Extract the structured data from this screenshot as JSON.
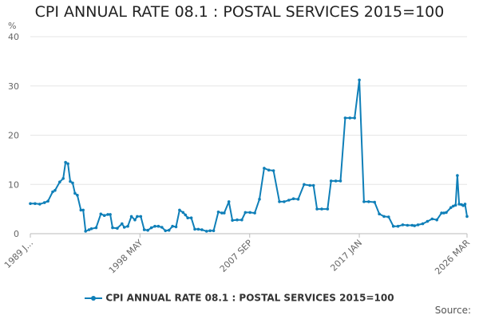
{
  "chart_data": {
    "type": "line",
    "title": "CPI ANNUAL RATE 08.1 : POSTAL SERVICES 2015=100",
    "ylabel": "%",
    "xlabel": "",
    "ylim": [
      0,
      40
    ],
    "yticks": [
      0,
      10,
      20,
      30,
      40
    ],
    "xlim": [
      1989.0,
      2026.17
    ],
    "xticks": [
      {
        "x": 1989.0,
        "label": "1989 J..."
      },
      {
        "x": 1998.33,
        "label": "1998 MAY"
      },
      {
        "x": 2007.67,
        "label": "2007 SEP"
      },
      {
        "x": 2017.0,
        "label": "2017 JAN"
      },
      {
        "x": 2026.17,
        "label": "2026 MAR"
      }
    ],
    "series": [
      {
        "name": "CPI ANNUAL RATE 08.1 : POSTAL SERVICES 2015=100",
        "color": "#0f7fb8",
        "x": [
          1989.0,
          1989.4,
          1989.8,
          1990.2,
          1990.5,
          1990.9,
          1991.1,
          1991.5,
          1991.8,
          1992.0,
          1992.2,
          1992.4,
          1992.6,
          1992.8,
          1993.0,
          1993.3,
          1993.5,
          1993.7,
          1994.0,
          1994.2,
          1994.6,
          1995.0,
          1995.3,
          1995.6,
          1995.8,
          1996.0,
          1996.4,
          1996.8,
          1997.0,
          1997.3,
          1997.6,
          1997.9,
          1998.1,
          1998.4,
          1998.7,
          1999.0,
          1999.3,
          1999.6,
          1999.9,
          2000.2,
          2000.5,
          2000.8,
          2001.1,
          2001.4,
          2001.7,
          2002.0,
          2002.2,
          2002.4,
          2002.7,
          2003.0,
          2003.3,
          2003.6,
          2004.0,
          2004.3,
          2004.6,
          2005.0,
          2005.3,
          2005.5,
          2005.9,
          2006.2,
          2006.6,
          2007.0,
          2007.3,
          2007.7,
          2008.1,
          2008.5,
          2008.9,
          2009.3,
          2009.7,
          2010.2,
          2010.6,
          2011.0,
          2011.4,
          2011.8,
          2012.3,
          2012.8,
          2013.1,
          2013.4,
          2013.8,
          2014.3,
          2014.6,
          2015.0,
          2015.4,
          2015.8,
          2016.2,
          2016.6,
          2017.0,
          2017.4,
          2017.8,
          2018.3,
          2018.7,
          2019.1,
          2019.5,
          2019.9,
          2020.3,
          2020.7,
          2021.1,
          2021.5,
          2021.7,
          2022.0,
          2022.4,
          2022.8,
          2023.2,
          2023.6,
          2024.0,
          2024.2,
          2024.4,
          2024.8,
          2025.0,
          2025.2,
          2025.35,
          2025.5,
          2025.7,
          2025.85,
          2026.0,
          2026.17
        ],
        "values": [
          6.1,
          6.1,
          6.0,
          6.3,
          6.6,
          8.5,
          8.8,
          10.5,
          11.2,
          14.5,
          14.2,
          10.6,
          10.3,
          8.2,
          7.8,
          4.8,
          4.8,
          0.5,
          0.8,
          1.0,
          1.2,
          4.0,
          3.7,
          3.9,
          3.9,
          1.2,
          1.1,
          2.0,
          1.3,
          1.5,
          3.5,
          2.8,
          3.5,
          3.5,
          0.8,
          0.7,
          1.2,
          1.5,
          1.5,
          1.3,
          0.6,
          0.7,
          1.5,
          1.4,
          4.8,
          4.3,
          3.8,
          3.2,
          3.2,
          0.9,
          0.9,
          0.8,
          0.5,
          0.6,
          0.6,
          4.4,
          4.2,
          4.2,
          6.5,
          2.7,
          2.8,
          2.8,
          4.3,
          4.3,
          4.2,
          7.0,
          13.3,
          12.9,
          12.8,
          6.5,
          6.5,
          6.8,
          7.1,
          7.0,
          10.0,
          9.8,
          9.8,
          5.0,
          5.0,
          5.0,
          10.7,
          10.7,
          10.7,
          23.5,
          23.5,
          23.5,
          31.2,
          6.5,
          6.5,
          6.4,
          4.0,
          3.5,
          3.4,
          1.5,
          1.5,
          1.8,
          1.7,
          1.7,
          1.6,
          1.8,
          2.0,
          2.5,
          3.0,
          2.8,
          4.2,
          4.2,
          4.3,
          5.3,
          5.6,
          5.8,
          11.8,
          6.0,
          5.9,
          5.7,
          6.0,
          3.5
        ]
      }
    ],
    "legend": {
      "position": "bottom",
      "label": "CPI ANNUAL RATE 08.1 : POSTAL SERVICES 2015=100"
    },
    "grid": true,
    "source_label": "Source:"
  }
}
